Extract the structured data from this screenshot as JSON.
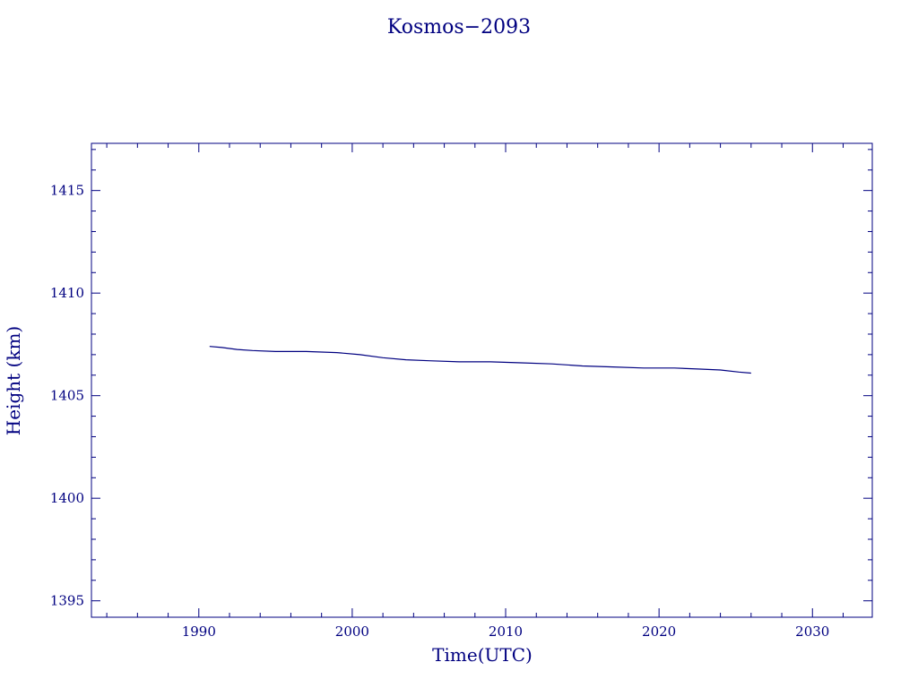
{
  "chart_data": {
    "type": "line",
    "title": "Kosmos−2093",
    "xlabel": "Time(UTC)",
    "ylabel": "Height (km)",
    "xlim": [
      1983.0,
      2033.9
    ],
    "ylim": [
      1394.2,
      1417.3
    ],
    "x_ticks": [
      "1990",
      "2000",
      "2010",
      "2020",
      "2030"
    ],
    "y_ticks": [
      "1395",
      "1400",
      "1405",
      "1410",
      "1415"
    ],
    "grid": false,
    "legend": "none",
    "color": "#000080",
    "series": [
      {
        "x": [
          1990.7,
          1991.5,
          1992.5,
          1993.5,
          1995,
          1997,
          1999,
          2000.5,
          2002,
          2003.5,
          2005,
          2007,
          2009,
          2011,
          2013,
          2015,
          2017,
          2019,
          2021,
          2022.5,
          2024,
          2025.2,
          2026
        ],
        "y": [
          1407.4,
          1407.35,
          1407.25,
          1407.2,
          1407.15,
          1407.15,
          1407.1,
          1407.0,
          1406.85,
          1406.75,
          1406.7,
          1406.65,
          1406.65,
          1406.6,
          1406.55,
          1406.45,
          1406.4,
          1406.35,
          1406.35,
          1406.3,
          1406.25,
          1406.15,
          1406.1
        ]
      }
    ]
  }
}
